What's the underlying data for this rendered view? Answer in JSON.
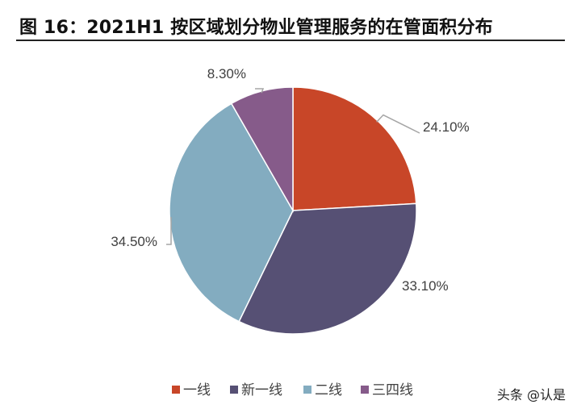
{
  "title": "图 16：2021H1 按区域划分物业管理服务的在管面积分布",
  "watermark": "头条 @认是",
  "chart_data": {
    "type": "pie",
    "title": "",
    "slices": [
      {
        "name": "一线",
        "value": 24.1,
        "label": "24.10%",
        "color": "#C84628"
      },
      {
        "name": "新一线",
        "value": 33.1,
        "label": "33.10%",
        "color": "#565074"
      },
      {
        "name": "二线",
        "value": 34.5,
        "label": "34.50%",
        "color": "#83ACC0"
      },
      {
        "name": "三四线",
        "value": 8.3,
        "label": "8.30%",
        "color": "#865B8A"
      }
    ],
    "legend_position": "bottom",
    "start_angle_deg": 0,
    "direction": "clockwise"
  }
}
